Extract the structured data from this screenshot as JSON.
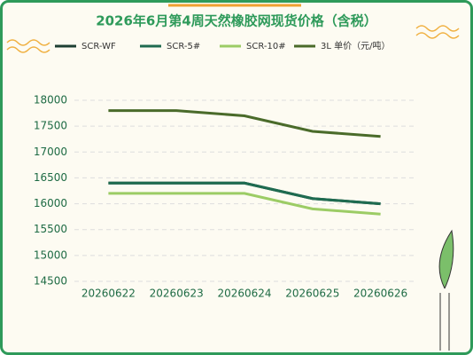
{
  "chart_data": {
    "type": "line",
    "title": "2026年6月第4周天然橡胶网现货价格（含税）",
    "categories": [
      "20260622",
      "20260623",
      "20260624",
      "20260625",
      "20260626"
    ],
    "series": [
      {
        "name": "SCR-WF",
        "color": "#1d3f33",
        "values": [
          16400,
          16400,
          16400,
          16100,
          16000
        ]
      },
      {
        "name": "SCR-5#",
        "color": "#1e6b50",
        "values": [
          16400,
          16400,
          16400,
          16100,
          16000
        ]
      },
      {
        "name": "SCR-10#",
        "color": "#9ccc65",
        "values": [
          16200,
          16200,
          16200,
          15900,
          15800
        ]
      },
      {
        "name": "3L 单价（元/吨）",
        "color": "#4a6b2a",
        "values": [
          17800,
          17800,
          17700,
          17400,
          17300
        ]
      }
    ],
    "ylim": [
      14500,
      18000
    ],
    "yticks": [
      14500,
      15000,
      15500,
      16000,
      16500,
      17000,
      17500,
      18000
    ],
    "grid": true
  }
}
